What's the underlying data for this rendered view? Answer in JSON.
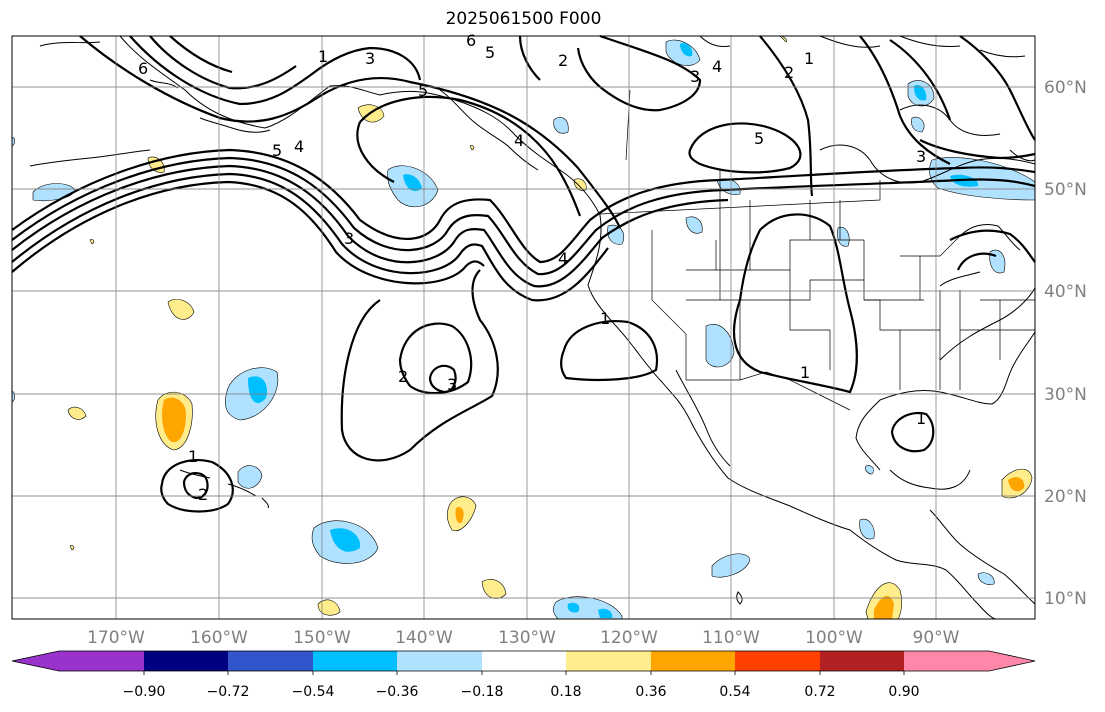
{
  "title": "2025061500 F000",
  "map": {
    "lon_labels": [
      "170°W",
      "160°W",
      "150°W",
      "140°W",
      "130°W",
      "120°W",
      "110°W",
      "100°W",
      "90°W"
    ],
    "lat_labels": [
      "60°N",
      "50°N",
      "40°N",
      "30°N",
      "20°N",
      "10°N"
    ],
    "contour_labels": [
      "1",
      "3",
      "5",
      "4",
      "6",
      "5",
      "2",
      "3",
      "4",
      "2",
      "1",
      "5",
      "3",
      "3",
      "4",
      "2",
      "3",
      "1",
      "1",
      "1",
      "2",
      "1",
      "5",
      "4",
      "6"
    ]
  },
  "colorbar": {
    "tick_labels": [
      "−0.90",
      "−0.72",
      "−0.54",
      "−0.36",
      "−0.18",
      "0.18",
      "0.36",
      "0.54",
      "0.72",
      "0.90"
    ],
    "colors": [
      "#9933cc",
      "#000080",
      "#3355cc",
      "#00bfff",
      "#b0e2ff",
      "#ffffff",
      "#ffec8b",
      "#ffa500",
      "#ff4000",
      "#b22222",
      "#ff88aa"
    ]
  }
}
